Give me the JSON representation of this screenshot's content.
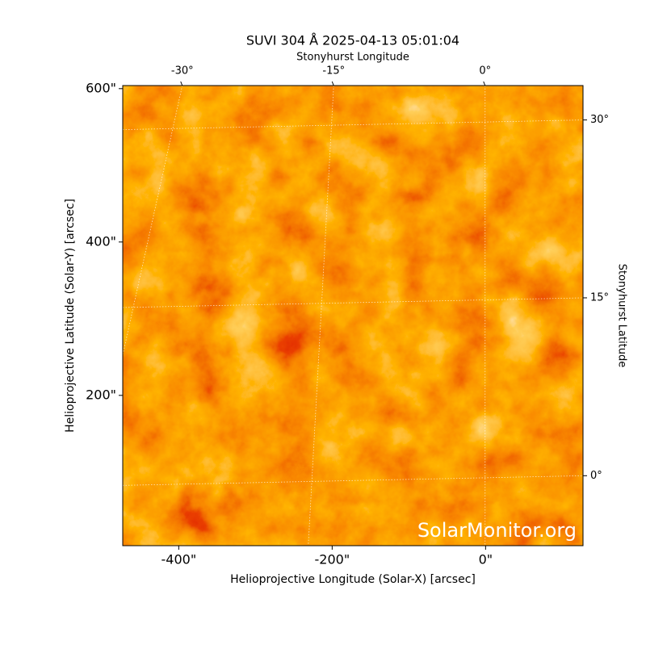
{
  "chart_data": {
    "type": "image",
    "title": "SUVI 304 Å 2025-04-13 05:01:04",
    "xlabel": "Helioprojective Longitude (Solar-X) [arcsec]",
    "ylabel": "Helioprojective Latitude (Solar-Y) [arcsec]",
    "x2label": "Stonyhurst Longitude",
    "y2label": "Stonyhurst Latitude",
    "watermark": "SolarMonitor.org",
    "xlim": [
      -473,
      127
    ],
    "ylim": [
      4,
      604
    ],
    "xticks": [
      {
        "value": -400,
        "label": "-400\""
      },
      {
        "value": -200,
        "label": "-200\""
      },
      {
        "value": 0,
        "label": "0\""
      }
    ],
    "yticks": [
      {
        "value": 200,
        "label": "200\""
      },
      {
        "value": 400,
        "label": "400\""
      },
      {
        "value": 600,
        "label": "600\""
      }
    ],
    "x2lim": [
      -35.9,
      9.7
    ],
    "x2ticks": [
      {
        "value": -30,
        "label": "-30°"
      },
      {
        "value": -15,
        "label": "-15°"
      },
      {
        "value": 0,
        "label": "0°"
      }
    ],
    "y2lim": [
      -5.9,
      32.9
    ],
    "y2ticks": [
      {
        "value": 0,
        "label": "0°"
      },
      {
        "value": 15,
        "label": "15°"
      },
      {
        "value": 30,
        "label": "30°"
      }
    ],
    "grid": true
  }
}
